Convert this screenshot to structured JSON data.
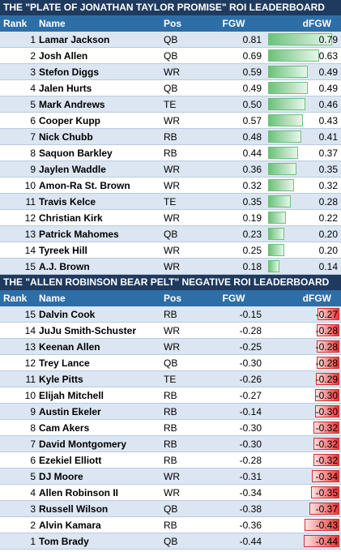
{
  "top_board": {
    "title": "THE \"PLATE OF JONATHAN TAYLOR PROMISE\" ROI LEADERBOARD",
    "headers": {
      "rank": "Rank",
      "name": "Name",
      "pos": "Pos",
      "fgw": "FGW",
      "dfgw": "dFGW"
    },
    "rows": [
      {
        "rank": "1",
        "name": "Lamar Jackson",
        "pos": "QB",
        "fgw": "0.81",
        "dfgw": "0.79"
      },
      {
        "rank": "2",
        "name": "Josh Allen",
        "pos": "QB",
        "fgw": "0.69",
        "dfgw": "0.63"
      },
      {
        "rank": "3",
        "name": "Stefon Diggs",
        "pos": "WR",
        "fgw": "0.59",
        "dfgw": "0.49"
      },
      {
        "rank": "4",
        "name": "Jalen Hurts",
        "pos": "QB",
        "fgw": "0.49",
        "dfgw": "0.49"
      },
      {
        "rank": "5",
        "name": "Mark Andrews",
        "pos": "TE",
        "fgw": "0.50",
        "dfgw": "0.46"
      },
      {
        "rank": "6",
        "name": "Cooper Kupp",
        "pos": "WR",
        "fgw": "0.57",
        "dfgw": "0.43"
      },
      {
        "rank": "7",
        "name": "Nick Chubb",
        "pos": "RB",
        "fgw": "0.48",
        "dfgw": "0.41"
      },
      {
        "rank": "8",
        "name": "Saquon Barkley",
        "pos": "RB",
        "fgw": "0.44",
        "dfgw": "0.37"
      },
      {
        "rank": "9",
        "name": "Jaylen Waddle",
        "pos": "WR",
        "fgw": "0.36",
        "dfgw": "0.35"
      },
      {
        "rank": "10",
        "name": "Amon-Ra St. Brown",
        "pos": "WR",
        "fgw": "0.32",
        "dfgw": "0.32"
      },
      {
        "rank": "11",
        "name": "Travis Kelce",
        "pos": "TE",
        "fgw": "0.35",
        "dfgw": "0.28"
      },
      {
        "rank": "12",
        "name": "Christian Kirk",
        "pos": "WR",
        "fgw": "0.19",
        "dfgw": "0.22"
      },
      {
        "rank": "13",
        "name": "Patrick Mahomes",
        "pos": "QB",
        "fgw": "0.23",
        "dfgw": "0.20"
      },
      {
        "rank": "14",
        "name": "Tyreek Hill",
        "pos": "WR",
        "fgw": "0.25",
        "dfgw": "0.20"
      },
      {
        "rank": "15",
        "name": "A.J. Brown",
        "pos": "WR",
        "fgw": "0.18",
        "dfgw": "0.14"
      }
    ]
  },
  "bottom_board": {
    "title": "THE \"ALLEN ROBINSON BEAR PELT\" NEGATIVE ROI LEADERBOARD",
    "headers": {
      "rank": "Rank",
      "name": "Name",
      "pos": "Pos",
      "fgw": "FGW",
      "dfgw": "dFGW"
    },
    "rows": [
      {
        "rank": "15",
        "name": "Dalvin Cook",
        "pos": "RB",
        "fgw": "-0.15",
        "dfgw": "-0.27"
      },
      {
        "rank": "14",
        "name": "JuJu Smith-Schuster",
        "pos": "WR",
        "fgw": "-0.28",
        "dfgw": "-0.28"
      },
      {
        "rank": "13",
        "name": "Keenan Allen",
        "pos": "WR",
        "fgw": "-0.25",
        "dfgw": "-0.28"
      },
      {
        "rank": "12",
        "name": "Trey Lance",
        "pos": "QB",
        "fgw": "-0.30",
        "dfgw": "-0.28"
      },
      {
        "rank": "11",
        "name": "Kyle Pitts",
        "pos": "TE",
        "fgw": "-0.26",
        "dfgw": "-0.29"
      },
      {
        "rank": "10",
        "name": "Elijah Mitchell",
        "pos": "RB",
        "fgw": "-0.27",
        "dfgw": "-0.30"
      },
      {
        "rank": "9",
        "name": "Austin Ekeler",
        "pos": "RB",
        "fgw": "-0.14",
        "dfgw": "-0.30"
      },
      {
        "rank": "8",
        "name": "Cam Akers",
        "pos": "RB",
        "fgw": "-0.30",
        "dfgw": "-0.32"
      },
      {
        "rank": "7",
        "name": "David Montgomery",
        "pos": "RB",
        "fgw": "-0.30",
        "dfgw": "-0.32"
      },
      {
        "rank": "6",
        "name": "Ezekiel Elliott",
        "pos": "RB",
        "fgw": "-0.28",
        "dfgw": "-0.32"
      },
      {
        "rank": "5",
        "name": "DJ Moore",
        "pos": "WR",
        "fgw": "-0.31",
        "dfgw": "-0.34"
      },
      {
        "rank": "4",
        "name": "Allen Robinson II",
        "pos": "WR",
        "fgw": "-0.34",
        "dfgw": "-0.35"
      },
      {
        "rank": "3",
        "name": "Russell Wilson",
        "pos": "QB",
        "fgw": "-0.38",
        "dfgw": "-0.37"
      },
      {
        "rank": "2",
        "name": "Alvin Kamara",
        "pos": "RB",
        "fgw": "-0.36",
        "dfgw": "-0.43"
      },
      {
        "rank": "1",
        "name": "Tom Brady",
        "pos": "QB",
        "fgw": "-0.44",
        "dfgw": "-0.44"
      }
    ]
  },
  "colors": {
    "banner": "#1f3a5f",
    "header": "#2e6ea6",
    "band": "#dbe6f2",
    "positive_bar": "#6cc27a",
    "negative_bar": "#e33333"
  }
}
